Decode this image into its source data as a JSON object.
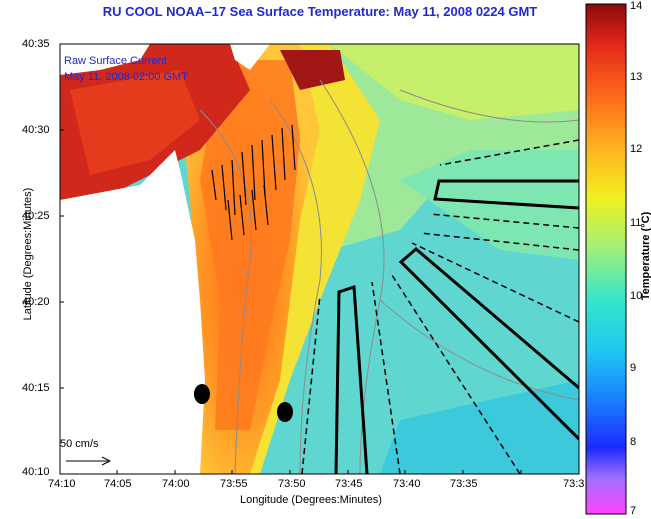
{
  "title": "RU COOL  NOAA–17  Sea Surface Temperature:  May 11, 2008 0224 GMT",
  "legend": {
    "line1": "Raw Surface Current",
    "line2": "May 11, 2008 02:00 GMT"
  },
  "axes": {
    "xlabel": "Longitude (Degrees:Minutes)",
    "ylabel": "Latitude (Degrees:Minutes)",
    "xticks": [
      "74:10",
      "74:05",
      "74:00",
      "73:55",
      "73:50",
      "73:45",
      "73:40",
      "73:35",
      "73:3"
    ],
    "yticks": [
      "40:35",
      "40:30",
      "40:25",
      "40:20",
      "40:15",
      "40:10"
    ]
  },
  "colorbar": {
    "title": "Temperature (°C)",
    "ticks": [
      "14",
      "13",
      "12",
      "11",
      "10",
      "9",
      "8",
      "7"
    ],
    "min": 7,
    "max": 14
  },
  "scale_arrow": {
    "label": "50 cm/s"
  },
  "colors": {
    "title": "#1d2bd0",
    "land": "#ffffff",
    "warm": "#d0281b",
    "cool": "#5fd7d0"
  }
}
